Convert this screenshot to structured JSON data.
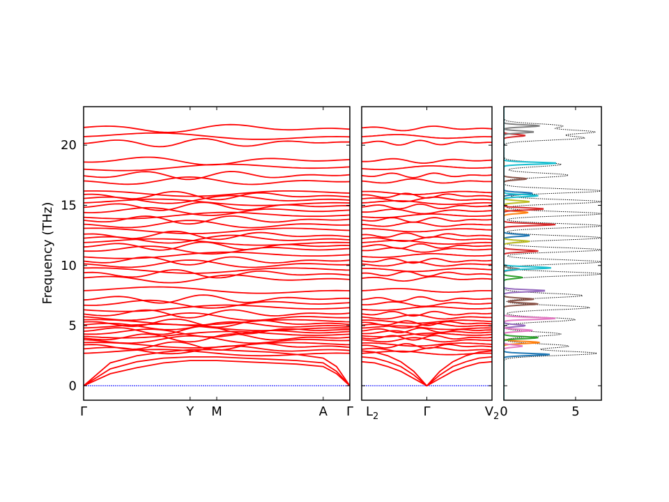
{
  "chart_data": [
    {
      "type": "line",
      "panel": "band-structure-segment-1",
      "ylabel": "Frequency (THz)",
      "ylim": [
        -1.2,
        23.2
      ],
      "yticks": [
        0,
        5,
        10,
        15,
        20
      ],
      "xlim": [
        0,
        1
      ],
      "xticks": [
        {
          "label": "Γ",
          "pos": 0.0
        },
        {
          "label": "Y",
          "pos": 0.4
        },
        {
          "label": "M",
          "pos": 0.5
        },
        {
          "label": "A",
          "pos": 0.9
        },
        {
          "label": "Γ",
          "pos": 1.0
        }
      ],
      "series_color": "#ff0000",
      "zero_line_color": "#0000ff",
      "acoustic": [
        {
          "name": "",
          "x": [
            0,
            0.1,
            0.2,
            0.3,
            0.4,
            0.5,
            0.6,
            0.7,
            0.8,
            0.9,
            0.95,
            1.0
          ],
          "y": [
            0,
            1.0,
            1.5,
            1.9,
            2.1,
            2.1,
            2.0,
            1.9,
            1.8,
            1.6,
            1.0,
            0
          ]
        },
        {
          "name": "",
          "x": [
            0,
            0.1,
            0.2,
            0.3,
            0.4,
            0.5,
            0.6,
            0.7,
            0.8,
            0.9,
            0.95,
            1.0
          ],
          "y": [
            0,
            1.4,
            2.0,
            2.3,
            2.4,
            2.4,
            2.3,
            2.2,
            2.1,
            1.9,
            1.2,
            0
          ]
        },
        {
          "name": "",
          "x": [
            0,
            0.1,
            0.2,
            0.3,
            0.4,
            0.5,
            0.6,
            0.7,
            0.8,
            0.9,
            0.95,
            1.0
          ],
          "y": [
            0,
            1.9,
            2.5,
            2.8,
            3.0,
            3.0,
            2.9,
            2.8,
            2.6,
            2.3,
            1.6,
            0
          ]
        }
      ],
      "optical_base_frequencies": [
        2.7,
        3.0,
        3.3,
        3.5,
        3.8,
        4.0,
        4.2,
        4.4,
        4.6,
        4.8,
        5.0,
        5.2,
        5.4,
        5.7,
        6.0,
        6.4,
        6.8,
        7.2,
        7.9,
        8.9,
        9.3,
        9.7,
        10.1,
        10.4,
        10.8,
        11.3,
        11.6,
        11.9,
        12.2,
        12.5,
        13.0,
        13.4,
        13.8,
        14.1,
        14.5,
        14.9,
        15.2,
        15.5,
        15.8,
        16.1,
        17.0,
        17.5,
        18.1,
        18.7,
        20.2,
        20.7,
        21.4
      ],
      "optical_amplitude": 0.35
    },
    {
      "type": "line",
      "panel": "band-structure-segment-2",
      "ylim": [
        -1.2,
        23.2
      ],
      "xlim": [
        0,
        1
      ],
      "xticks": [
        {
          "label": "L",
          "sub": "2",
          "pos": 0.0
        },
        {
          "label": "Γ",
          "pos": 0.5
        },
        {
          "label": "V",
          "sub": "2",
          "pos": 1.0
        }
      ],
      "series_color": "#ff0000",
      "zero_line_color": "#0000ff",
      "acoustic": [
        {
          "name": "",
          "x": [
            0,
            0.1,
            0.2,
            0.3,
            0.4,
            0.5,
            0.6,
            0.7,
            0.8,
            0.9,
            1.0
          ],
          "y": [
            2.0,
            1.9,
            1.6,
            1.2,
            0.6,
            0,
            0.6,
            1.2,
            1.6,
            1.9,
            2.0
          ]
        },
        {
          "name": "",
          "x": [
            0,
            0.1,
            0.2,
            0.3,
            0.4,
            0.5,
            0.6,
            0.7,
            0.8,
            0.9,
            1.0
          ],
          "y": [
            2.4,
            2.3,
            2.0,
            1.6,
            0.9,
            0,
            0.9,
            1.6,
            2.0,
            2.3,
            2.4
          ]
        },
        {
          "name": "",
          "x": [
            0,
            0.1,
            0.2,
            0.3,
            0.4,
            0.5,
            0.6,
            0.7,
            0.8,
            0.9,
            1.0
          ],
          "y": [
            2.9,
            2.8,
            2.5,
            2.0,
            1.2,
            0,
            1.2,
            2.0,
            2.5,
            2.8,
            2.9
          ]
        }
      ],
      "optical_base_frequencies": [
        2.7,
        3.0,
        3.3,
        3.5,
        3.8,
        4.0,
        4.2,
        4.4,
        4.6,
        4.8,
        5.0,
        5.2,
        5.4,
        5.7,
        6.0,
        6.4,
        6.8,
        7.2,
        7.9,
        8.9,
        9.3,
        9.7,
        10.1,
        10.4,
        10.8,
        11.3,
        11.6,
        11.9,
        12.2,
        12.5,
        13.0,
        13.4,
        13.8,
        14.1,
        14.5,
        14.9,
        15.2,
        15.5,
        15.8,
        16.1,
        17.0,
        17.5,
        18.1,
        18.7,
        20.2,
        20.7,
        21.4
      ],
      "optical_amplitude": 0.2
    },
    {
      "type": "line",
      "panel": "density-of-states",
      "ylim": [
        -1.2,
        23.2
      ],
      "xlim": [
        0,
        6.8
      ],
      "xticks": [
        {
          "label": "0",
          "pos": 0
        },
        {
          "label": "5",
          "pos": 5
        }
      ],
      "total_dos_color": "#000000",
      "total_dos_peaks": [
        {
          "f": 2.7,
          "h": 6.5
        },
        {
          "f": 3.3,
          "h": 4.5
        },
        {
          "f": 4.3,
          "h": 4.0
        },
        {
          "f": 5.5,
          "h": 5.0
        },
        {
          "f": 6.5,
          "h": 6.0
        },
        {
          "f": 7.5,
          "h": 5.5
        },
        {
          "f": 9.3,
          "h": 6.8
        },
        {
          "f": 10.3,
          "h": 6.8
        },
        {
          "f": 11.3,
          "h": 6.8
        },
        {
          "f": 12.3,
          "h": 6.8
        },
        {
          "f": 13.3,
          "h": 6.8
        },
        {
          "f": 14.3,
          "h": 6.8
        },
        {
          "f": 15.3,
          "h": 6.8
        },
        {
          "f": 16.2,
          "h": 6.8
        },
        {
          "f": 17.5,
          "h": 4.5
        },
        {
          "f": 18.4,
          "h": 4.0
        },
        {
          "f": 20.6,
          "h": 5.5
        },
        {
          "f": 21.1,
          "h": 6.2
        },
        {
          "f": 21.6,
          "h": 4.0
        }
      ],
      "partial_dos_colors": [
        "#1f77b4",
        "#ff7f0e",
        "#2ca02c",
        "#d62728",
        "#9467bd",
        "#8c564b",
        "#e377c2",
        "#7f7f7f",
        "#bcbd22",
        "#17becf"
      ],
      "partial_dos_peaks": [
        [
          {
            "f": 2.6,
            "h": 3.2
          },
          {
            "f": 12.5,
            "h": 1.8
          },
          {
            "f": 16.0,
            "h": 2.0
          }
        ],
        [
          {
            "f": 3.6,
            "h": 2.5
          },
          {
            "f": 14.4,
            "h": 1.7
          }
        ],
        [
          {
            "f": 4.0,
            "h": 2.4
          },
          {
            "f": 9.0,
            "h": 1.3
          }
        ],
        [
          {
            "f": 14.7,
            "h": 2.8
          },
          {
            "f": 11.2,
            "h": 2.4
          },
          {
            "f": 20.8,
            "h": 1.5
          },
          {
            "f": 13.4,
            "h": 3.6
          }
        ],
        [
          {
            "f": 7.9,
            "h": 2.9
          },
          {
            "f": 5.0,
            "h": 1.5
          }
        ],
        [
          {
            "f": 6.8,
            "h": 2.4
          },
          {
            "f": 7.2,
            "h": 2.1
          },
          {
            "f": 17.2,
            "h": 1.6
          }
        ],
        [
          {
            "f": 5.6,
            "h": 3.6
          },
          {
            "f": 4.6,
            "h": 2.0
          },
          {
            "f": 3.3,
            "h": 1.3
          }
        ],
        [
          {
            "f": 21.6,
            "h": 2.5
          },
          {
            "f": 21.1,
            "h": 2.1
          },
          {
            "f": 9.7,
            "h": 1.1
          }
        ],
        [
          {
            "f": 12.0,
            "h": 1.8
          },
          {
            "f": 15.3,
            "h": 1.8
          }
        ],
        [
          {
            "f": 18.5,
            "h": 3.7
          },
          {
            "f": 9.8,
            "h": 3.3
          },
          {
            "f": 15.8,
            "h": 2.4
          }
        ]
      ]
    }
  ]
}
